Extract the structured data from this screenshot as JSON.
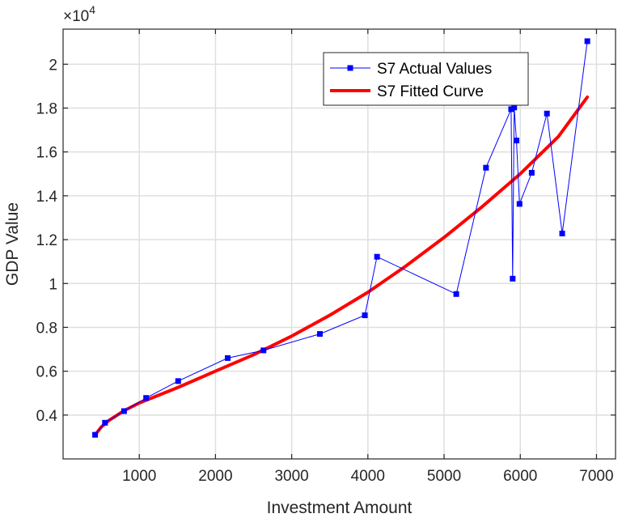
{
  "chart_data": {
    "type": "line",
    "xlabel": "Investment Amount",
    "ylabel": "GDP Value",
    "exponent_label": "×10",
    "exponent_power": "4",
    "xlim": [
      0,
      7250
    ],
    "ylim": [
      0.2,
      2.16
    ],
    "x_ticks": [
      1000,
      2000,
      3000,
      4000,
      5000,
      6000,
      7000
    ],
    "x_tick_labels": [
      "1000",
      "2000",
      "3000",
      "4000",
      "5000",
      "6000",
      "7000"
    ],
    "y_ticks": [
      0.4,
      0.6,
      0.8,
      1.0,
      1.2,
      1.4,
      1.6,
      1.8,
      2.0
    ],
    "y_tick_labels": [
      "0.4",
      "0.6",
      "0.8",
      "1",
      "1.2",
      "1.4",
      "1.6",
      "1.8",
      "2"
    ],
    "grid": true,
    "legend_position": "top-right",
    "series": [
      {
        "name": "S7 Actual Values",
        "color": "#0000ff",
        "style": "thin line with square markers",
        "x": [
          420,
          550,
          800,
          1090,
          1510,
          2160,
          2630,
          3370,
          3960,
          4120,
          5160,
          5550,
          5880,
          5900,
          5920,
          5950,
          5990,
          6150,
          6350,
          6550,
          6880
        ],
        "y": [
          0.31,
          0.365,
          0.418,
          0.478,
          0.555,
          0.66,
          0.695,
          0.77,
          0.855,
          1.122,
          0.952,
          1.528,
          1.795,
          1.022,
          1.803,
          1.652,
          1.363,
          1.505,
          1.775,
          1.228,
          2.105
        ]
      },
      {
        "name": "S7 Fitted Curve",
        "color": "#ff0000",
        "style": "thick line",
        "x": [
          420,
          500,
          600,
          800,
          1000,
          1500,
          2000,
          2500,
          3000,
          3500,
          4000,
          4500,
          5000,
          5500,
          6000,
          6500,
          6880
        ],
        "y": [
          0.31,
          0.345,
          0.375,
          0.42,
          0.455,
          0.525,
          0.6,
          0.675,
          0.76,
          0.855,
          0.96,
          1.08,
          1.21,
          1.35,
          1.5,
          1.67,
          1.85
        ]
      }
    ]
  }
}
